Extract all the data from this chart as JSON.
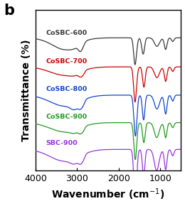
{
  "title_label": "b",
  "xlabel": "Wavenumber (cm⁻¹)",
  "ylabel": "Transmittance (%)",
  "xlim": [
    4000,
    500
  ],
  "series": [
    {
      "label": "CoSBC-600",
      "color": "#3a3a3a",
      "base": 0.82,
      "amp": 0.08,
      "label_color": "#3a3a3a"
    },
    {
      "label": "CoSBC-700",
      "color": "#cc0000",
      "base": 0.63,
      "amp": 0.1,
      "label_color": "#cc0000"
    },
    {
      "label": "CoSBC-800",
      "color": "#1244cc",
      "base": 0.445,
      "amp": 0.13,
      "label_color": "#1244cc"
    },
    {
      "label": "CoSBC-900",
      "color": "#229922",
      "base": 0.265,
      "amp": 0.11,
      "label_color": "#229922"
    },
    {
      "label": "SBC-900",
      "color": "#9933dd",
      "base": 0.09,
      "amp": 0.14,
      "label_color": "#9933dd"
    }
  ],
  "bg_color": "#ffffff",
  "label_fontsize": 10,
  "tick_fontsize": 9,
  "panel_label_fontsize": 15
}
